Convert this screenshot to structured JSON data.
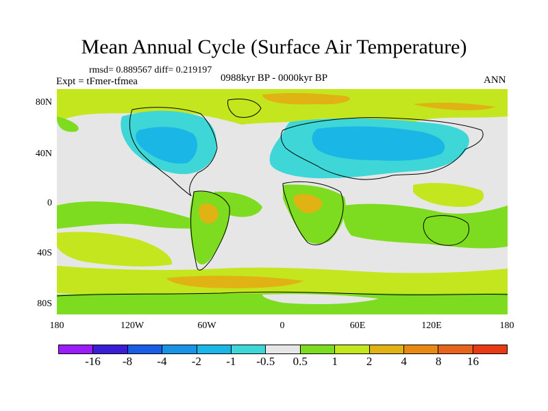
{
  "title": "Mean Annual Cycle (Surface Air Temperature)",
  "stats": "rmsd= 0.889567 diff= 0.219197",
  "experiment": "Expt = tFmer-tfmea",
  "period": "0988kyr BP - 0000kyr BP",
  "season": "ANN",
  "y_ticks": [
    "80N",
    "40N",
    "0",
    "40S",
    "80S"
  ],
  "x_ticks": [
    "180",
    "120W",
    "60W",
    "0",
    "60E",
    "120E",
    "180"
  ],
  "colorbar": {
    "colors": [
      "#9a1dfa",
      "#3a1ed6",
      "#1a5ee6",
      "#1893e6",
      "#19b6e6",
      "#3ed6d6",
      "#e6e6e6",
      "#7ddc1f",
      "#c3e61e",
      "#e0b214",
      "#e68a14",
      "#e6641b",
      "#e63b14"
    ],
    "labels": [
      "-16",
      "-8",
      "-4",
      "-2",
      "-1",
      "-0.5",
      "0.5",
      "1",
      "2",
      "4",
      "8",
      "16"
    ]
  },
  "palette": {
    "neutral": "#e6e6e6",
    "green": "#7ddc1f",
    "yellowgreen": "#c3e61e",
    "orange": "#e0b214",
    "darkorange": "#e68a14",
    "lightblue": "#3ed6d6",
    "cyan": "#19b6e6",
    "blue": "#1893e6"
  }
}
